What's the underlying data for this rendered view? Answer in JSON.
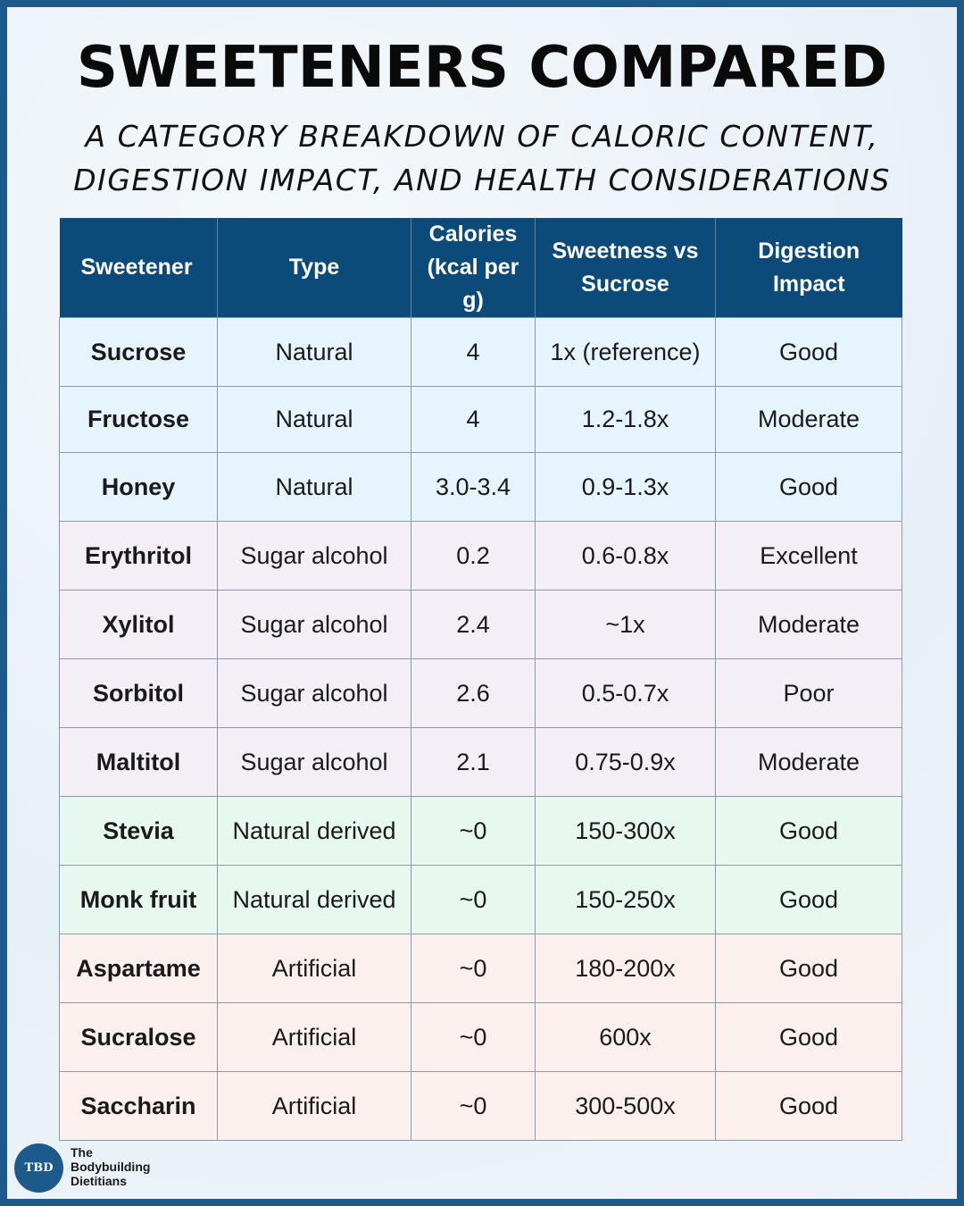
{
  "title": "SWEETENERS COMPARED",
  "subtitle": {
    "line1": "A CATEGORY BREAKDOWN OF CALORIC CONTENT,",
    "line2": "DIGESTION IMPACT, AND HEALTH CONSIDERATIONS"
  },
  "table": {
    "headers": [
      "Sweetener",
      "Type",
      "Calories (kcal per g)",
      "Sweetness vs Sucrose",
      "Digestion Impact"
    ],
    "rows": [
      {
        "group": "natural",
        "cells": [
          "Sucrose",
          "Natural",
          "4",
          "1x (reference)",
          "Good"
        ]
      },
      {
        "group": "natural",
        "cells": [
          "Fructose",
          "Natural",
          "4",
          "1.2-1.8x",
          "Moderate"
        ]
      },
      {
        "group": "natural",
        "cells": [
          "Honey",
          "Natural",
          "3.0-3.4",
          "0.9-1.3x",
          "Good"
        ]
      },
      {
        "group": "sugar",
        "cells": [
          "Erythritol",
          "Sugar alcohol",
          "0.2",
          "0.6-0.8x",
          "Excellent"
        ]
      },
      {
        "group": "sugar",
        "cells": [
          "Xylitol",
          "Sugar alcohol",
          "2.4",
          "~1x",
          "Moderate"
        ]
      },
      {
        "group": "sugar",
        "cells": [
          "Sorbitol",
          "Sugar alcohol",
          "2.6",
          "0.5-0.7x",
          "Poor"
        ]
      },
      {
        "group": "sugar",
        "cells": [
          "Maltitol",
          "Sugar alcohol",
          "2.1",
          "0.75-0.9x",
          "Moderate"
        ]
      },
      {
        "group": "derived",
        "cells": [
          "Stevia",
          "Natural derived",
          "~0",
          "150-300x",
          "Good"
        ]
      },
      {
        "group": "derived",
        "cells": [
          "Monk fruit",
          "Natural derived",
          "~0",
          "150-250x",
          "Good"
        ]
      },
      {
        "group": "artificial",
        "cells": [
          "Aspartame",
          "Artificial",
          "~0",
          "180-200x",
          "Good"
        ]
      },
      {
        "group": "artificial",
        "cells": [
          "Sucralose",
          "Artificial",
          "~0",
          "600x",
          "Good"
        ]
      },
      {
        "group": "artificial",
        "cells": [
          "Saccharin",
          "Artificial",
          "~0",
          "300-500x",
          "Good"
        ]
      }
    ]
  },
  "colors": {
    "header": "#0c4a7a",
    "natural_row": "#e6f4fd",
    "sugar_alcohol_row": "#f4eef7",
    "natural_derived_row": "#e7f8ef",
    "artificial_row": "#fbf0ee",
    "border_frame": "#1c5a8c"
  },
  "footer": {
    "logo_mark": "TBD",
    "brand_line1": "The",
    "brand_line2": "Bodybuilding",
    "brand_line3": "Dietitians"
  }
}
